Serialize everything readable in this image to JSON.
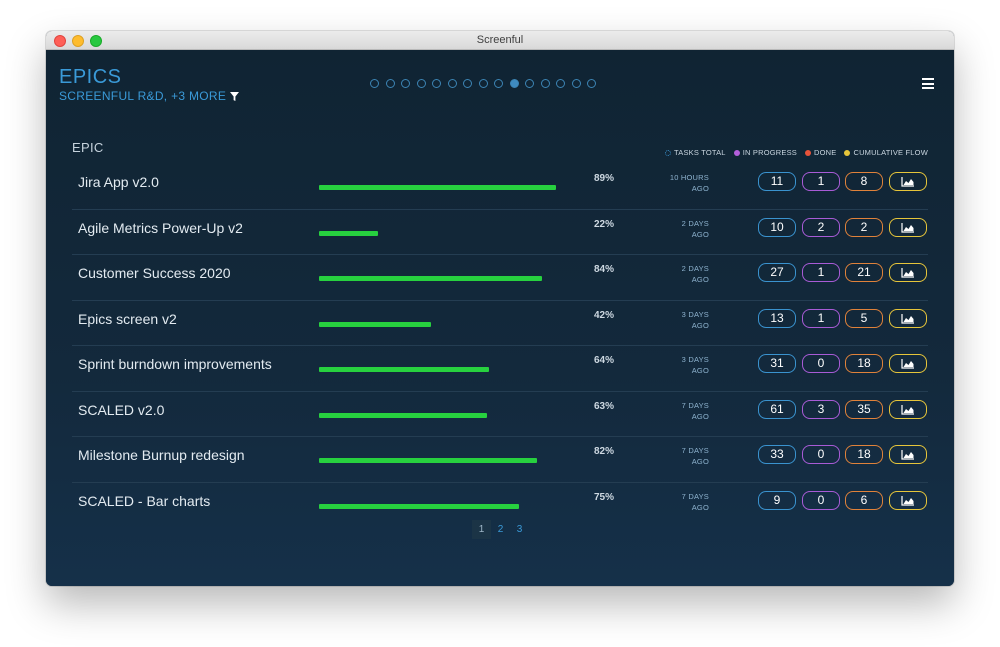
{
  "window": {
    "title": "Screenful"
  },
  "header": {
    "title": "EPICS",
    "subtitle": "SCREENFUL R&D, +3 MORE",
    "pager": {
      "total": 15,
      "active_index": 9
    }
  },
  "table": {
    "section_label": "EPIC",
    "legend": [
      {
        "label": "TASKS TOTAL",
        "color": "#3a93cf"
      },
      {
        "label": "IN PROGRESS",
        "color": "#b35fdb"
      },
      {
        "label": "DONE",
        "color": "#e8533a"
      },
      {
        "label": "CUMULATIVE FLOW",
        "color": "#e6c53a"
      }
    ],
    "rows": [
      {
        "name": "Jira App v2.0",
        "percent_label": "89%",
        "progress": 0.89,
        "ago_line1": "10 HOURS",
        "ago_line2": "AGO",
        "total": "11",
        "in_progress": "1",
        "done": "8"
      },
      {
        "name": "Agile Metrics Power-Up v2",
        "percent_label": "22%",
        "progress": 0.22,
        "ago_line1": "2 DAYS",
        "ago_line2": "AGO",
        "total": "10",
        "in_progress": "2",
        "done": "2"
      },
      {
        "name": "Customer Success 2020",
        "percent_label": "84%",
        "progress": 0.84,
        "ago_line1": "2 DAYS",
        "ago_line2": "AGO",
        "total": "27",
        "in_progress": "1",
        "done": "21"
      },
      {
        "name": "Epics screen v2",
        "percent_label": "42%",
        "progress": 0.42,
        "ago_line1": "3 DAYS",
        "ago_line2": "AGO",
        "total": "13",
        "in_progress": "1",
        "done": "5"
      },
      {
        "name": "Sprint burndown improvements",
        "percent_label": "64%",
        "progress": 0.64,
        "ago_line1": "3 DAYS",
        "ago_line2": "AGO",
        "total": "31",
        "in_progress": "0",
        "done": "18"
      },
      {
        "name": "SCALED v2.0",
        "percent_label": "63%",
        "progress": 0.63,
        "ago_line1": "7 DAYS",
        "ago_line2": "AGO",
        "total": "61",
        "in_progress": "3",
        "done": "35"
      },
      {
        "name": "Milestone Burnup redesign",
        "percent_label": "82%",
        "progress": 0.82,
        "ago_line1": "7 DAYS",
        "ago_line2": "AGO",
        "total": "33",
        "in_progress": "0",
        "done": "18"
      },
      {
        "name": "SCALED - Bar charts",
        "percent_label": "75%",
        "progress": 0.75,
        "ago_line1": "7 DAYS",
        "ago_line2": "AGO",
        "total": "9",
        "in_progress": "0",
        "done": "6"
      }
    ]
  },
  "pagination": {
    "pages": [
      "1",
      "2",
      "3"
    ],
    "current": "1"
  },
  "colors": {
    "accent": "#3a9ad8",
    "progress_fill": "#27d13f",
    "background": "#12273a"
  }
}
